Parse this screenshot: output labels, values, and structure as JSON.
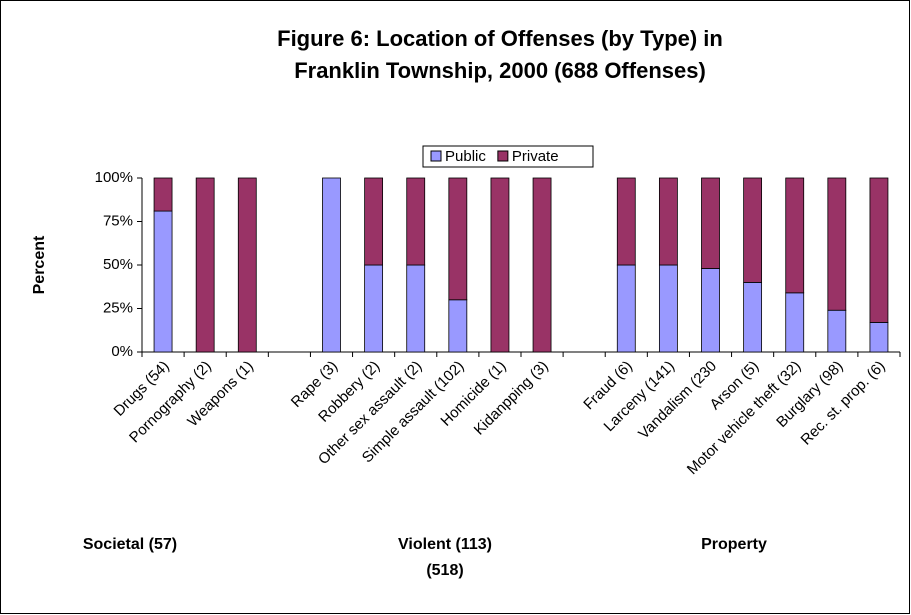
{
  "chart_data": {
    "type": "stacked_bar",
    "title": [
      "Figure 6:  Location of Offenses (by Type) in",
      "Franklin Township, 2000 (688 Offenses)"
    ],
    "y_label": "Percent",
    "categories": [
      "Drugs (54)",
      "Pornography (2)",
      "Weapons (1)",
      null,
      "Rape (3)",
      "Robbery (2)",
      "Other sex assault (2)",
      "Simple assault (102)",
      "Homicide (1)",
      "Kidanpping (3)",
      null,
      "Fraud (6)",
      "Larceny (141)",
      "Vandalism (230",
      "Arson (5)",
      "Motor vehicle theft (32)",
      "Burglary (98)",
      "Rec. st. prop. (6)"
    ],
    "series": [
      {
        "name": "Public",
        "color": "#9999ff",
        "values": [
          81,
          0,
          0,
          null,
          100,
          50,
          50,
          30,
          0,
          0,
          null,
          50,
          50,
          48,
          40,
          34,
          24,
          17
        ]
      },
      {
        "name": "Private",
        "color": "#993366",
        "values": [
          19,
          100,
          100,
          null,
          0,
          50,
          50,
          70,
          100,
          100,
          null,
          50,
          50,
          52,
          60,
          66,
          76,
          83
        ]
      }
    ],
    "ylim": [
      0,
      100
    ],
    "yticks": [
      {
        "value": 0,
        "label": "0%"
      },
      {
        "value": 25,
        "label": "25%"
      },
      {
        "value": 50,
        "label": "50%"
      },
      {
        "value": 75,
        "label": "75%"
      },
      {
        "value": 100,
        "label": "100%"
      }
    ],
    "legend": "top",
    "annotations": [
      "Societal (57)",
      "Violent (113)",
      "(518)",
      "Property"
    ]
  }
}
